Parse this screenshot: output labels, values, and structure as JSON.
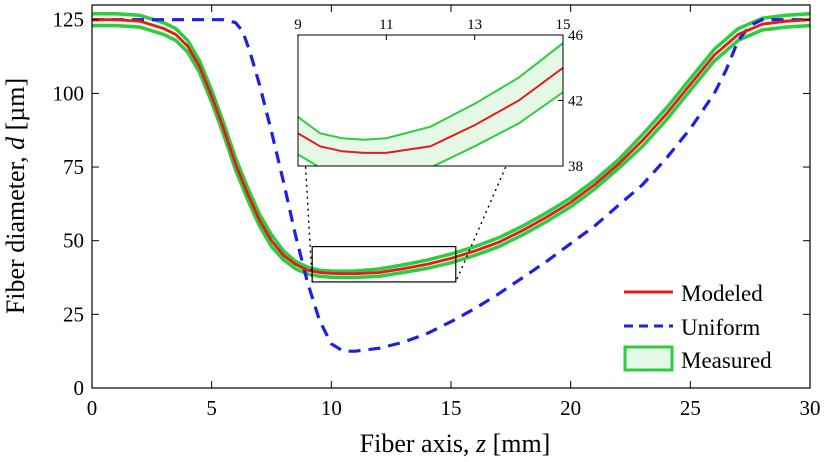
{
  "chart_data": {
    "type": "line",
    "xlabel": "Fiber axis, z [mm]",
    "ylabel": "Fiber diameter, d [µm]",
    "xlabel_parts": [
      "Fiber axis, ",
      "z",
      " [mm]"
    ],
    "ylabel_parts": [
      "Fiber diameter, ",
      "d",
      " [µm]"
    ],
    "xlim": [
      0,
      30
    ],
    "ylim": [
      0,
      130
    ],
    "x_ticks": [
      0,
      5,
      10,
      15,
      20,
      25,
      30
    ],
    "y_ticks": [
      0,
      25,
      50,
      75,
      100,
      125
    ],
    "grid": false,
    "legend_position": "bottom-right",
    "series": [
      {
        "name": "Modeled",
        "style": "solid",
        "color": "#e41a1c",
        "x": [
          0,
          1,
          2,
          3,
          3.5,
          4,
          4.5,
          5,
          5.5,
          6,
          6.5,
          7,
          7.5,
          8,
          8.5,
          9,
          9.5,
          10,
          10.5,
          11,
          12,
          13,
          14,
          15,
          16,
          17,
          18,
          19,
          20,
          21,
          22,
          23,
          24,
          25,
          26,
          27,
          28,
          29,
          30
        ],
        "y": [
          125,
          125,
          124.5,
          122,
          120,
          116,
          109,
          99,
          88,
          76,
          66,
          57,
          50,
          45,
          42,
          40,
          39.2,
          38.9,
          38.8,
          38.8,
          39.2,
          40.5,
          42,
          44,
          46.5,
          49.5,
          53.5,
          58,
          63,
          69,
          76,
          84,
          93,
          103,
          113,
          120,
          123.5,
          124.5,
          125
        ]
      },
      {
        "name": "Uniform",
        "style": "dashed",
        "color": "#1f1fe6",
        "x": [
          0,
          1,
          2,
          3,
          4,
          5,
          5.5,
          6,
          6.3,
          6.6,
          7,
          7.5,
          8,
          8.5,
          9,
          9.5,
          10,
          10.5,
          11,
          12,
          13,
          14,
          15,
          16,
          17,
          18,
          19,
          20,
          21,
          22,
          23,
          24,
          25,
          26,
          26.5,
          27,
          27.5,
          28,
          29,
          30
        ],
        "y": [
          125,
          125,
          125,
          125,
          125,
          125,
          125,
          124,
          121,
          114,
          103,
          87,
          70,
          52,
          36,
          23,
          15,
          12.5,
          12.5,
          13.5,
          15.5,
          18.5,
          22.5,
          27,
          32,
          37.5,
          43,
          49,
          55,
          62,
          69,
          78,
          88,
          100,
          108,
          118,
          123,
          125,
          125,
          125
        ]
      },
      {
        "name": "Measured",
        "style": "band",
        "color": "#2ecc40",
        "fill": "#e6f8e6",
        "x": [
          0,
          1,
          2,
          3,
          3.5,
          4,
          4.5,
          5,
          5.5,
          6,
          6.5,
          7,
          7.5,
          8,
          8.5,
          9,
          9.5,
          10,
          10.5,
          11,
          12,
          13,
          14,
          15,
          16,
          17,
          18,
          19,
          20,
          21,
          22,
          23,
          24,
          25,
          26,
          27,
          28,
          29,
          30
        ],
        "upper": [
          127,
          127,
          126.5,
          124,
          122,
          118,
          111,
          101,
          90,
          78,
          68,
          59,
          52,
          46.5,
          43,
          41,
          40,
          39.7,
          39.6,
          39.7,
          40.4,
          41.8,
          43.4,
          45.5,
          48,
          51,
          55,
          59.5,
          64.5,
          70.5,
          77.5,
          86,
          95,
          105,
          115,
          122,
          125.5,
          126.5,
          127
        ],
        "lower": [
          123,
          123,
          122.5,
          120,
          118,
          114,
          107,
          97,
          86,
          74,
          64,
          55,
          48,
          43.5,
          40.5,
          38.7,
          37.9,
          37.6,
          37.5,
          37.5,
          37.9,
          39.2,
          40.6,
          42.5,
          45,
          48,
          52,
          56.5,
          61.5,
          67.5,
          74.5,
          82,
          91,
          101,
          111,
          118,
          121.5,
          122.5,
          123
        ]
      }
    ],
    "inset": {
      "xlim": [
        9,
        15
      ],
      "ylim": [
        38,
        46
      ],
      "x_ticks": [
        9,
        11,
        13,
        15
      ],
      "y_ticks": [
        38,
        42,
        46
      ],
      "zoom_box": {
        "x": [
          9.2,
          15.2
        ],
        "y": [
          36,
          48
        ]
      }
    }
  }
}
